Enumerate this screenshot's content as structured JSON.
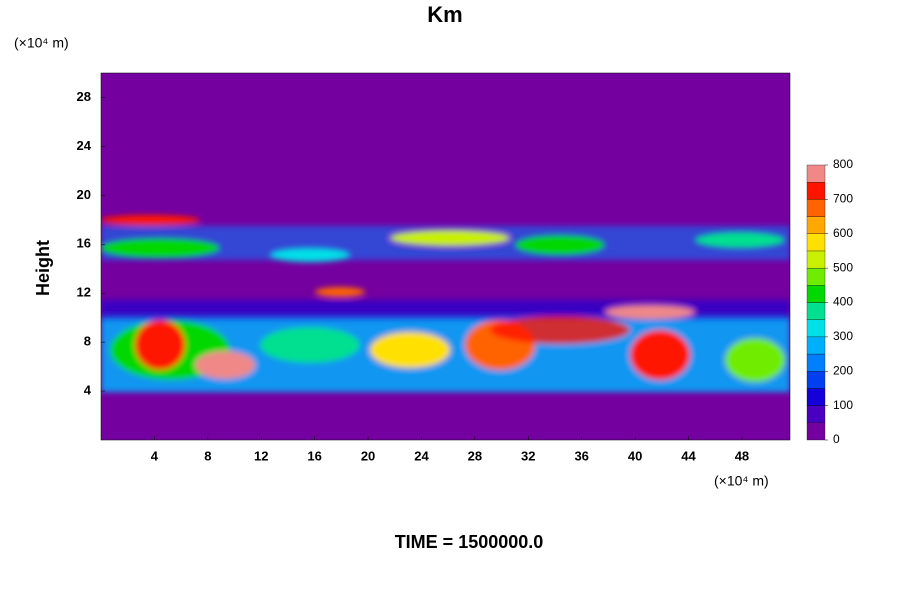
{
  "chart_data": {
    "type": "contour",
    "title": "Km",
    "ylabel": "Height",
    "yunit": "(×10⁴ m)",
    "xunit": "(×10⁴ m)",
    "footer": "TIME = 1500000.0",
    "xlim": [
      0,
      51.6
    ],
    "xticks": [
      4,
      8,
      12,
      16,
      20,
      24,
      28,
      32,
      36,
      40,
      44,
      48
    ],
    "ylim": [
      0,
      30
    ],
    "yticks": [
      4,
      8,
      12,
      16,
      20,
      24,
      28
    ],
    "colorbar": {
      "clim": [
        0,
        800
      ],
      "ticks": [
        0,
        100,
        200,
        300,
        400,
        500,
        600,
        700,
        800
      ],
      "colors": [
        "#7400a0",
        "#4a00c0",
        "#1400d8",
        "#0040f0",
        "#0080ff",
        "#00b0ff",
        "#00e0e8",
        "#00e090",
        "#00d800",
        "#70ec00",
        "#c8f000",
        "#ffe000",
        "#ffa800",
        "#ff6400",
        "#ff1400",
        "#f08888"
      ]
    }
  }
}
